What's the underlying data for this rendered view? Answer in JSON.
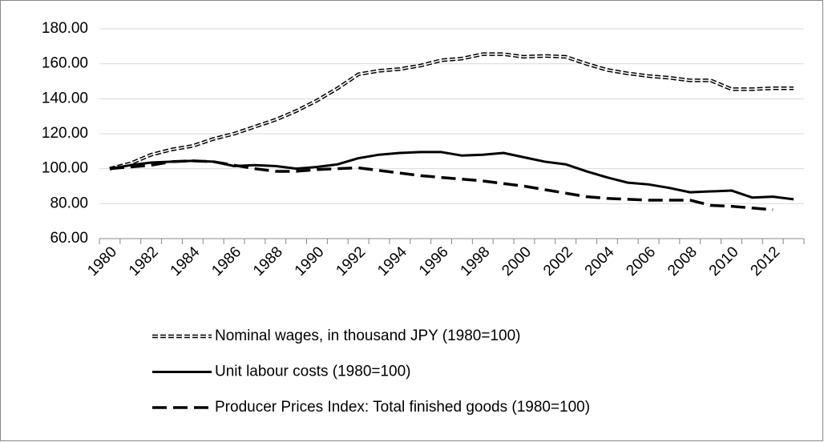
{
  "chart_data": {
    "type": "line",
    "categories": [
      "1980",
      null,
      "1982",
      null,
      "1984",
      null,
      "1986",
      null,
      "1988",
      null,
      "1990",
      null,
      "1992",
      null,
      "1994",
      null,
      "1996",
      null,
      "1998",
      null,
      "2000",
      null,
      "2002",
      null,
      "2004",
      null,
      "2006",
      null,
      "2008",
      null,
      "2010",
      null,
      "2012",
      null
    ],
    "series": [
      {
        "name": "Nominal wages, in thousand JPY (1980=100)",
        "color": "#000000",
        "dash": "double",
        "values": [
          100,
          103,
          108,
          111,
          113,
          117,
          120,
          124,
          128,
          133,
          139,
          146,
          154,
          156,
          157,
          159,
          162,
          163,
          165.5,
          165.5,
          164,
          164.5,
          164,
          160,
          156.5,
          154.5,
          153,
          152,
          150.5,
          150.5,
          145.5,
          145.5,
          146,
          146
        ]
      },
      {
        "name": "Unit labour costs (1980=100)",
        "color": "#000000",
        "dash": "solid",
        "values": [
          100,
          102,
          103.5,
          104,
          104.5,
          104,
          101.5,
          102,
          101.5,
          100,
          101,
          102.5,
          106,
          108,
          109,
          109.5,
          109.5,
          107.5,
          108,
          109,
          106.5,
          104,
          102.5,
          98.5,
          95,
          92,
          91,
          89,
          86.5,
          87,
          87.5,
          83.5,
          84,
          82.5
        ]
      },
      {
        "name": "Producer Prices Index: Total finished goods (1980=100)",
        "color": "#000000",
        "dash": "long",
        "values": [
          100,
          101,
          102,
          104,
          104.5,
          104,
          102,
          100,
          98.5,
          98.5,
          99.5,
          100,
          100.5,
          99,
          97.5,
          96,
          95,
          94,
          93,
          91.5,
          90,
          88,
          86,
          84,
          83,
          82.5,
          82,
          82,
          82,
          79,
          78.5,
          77.5,
          76.5,
          null
        ]
      }
    ],
    "ylim": [
      60,
      180
    ],
    "yticks": [
      {
        "value": 60,
        "label": "60.00"
      },
      {
        "value": 80,
        "label": "80.00"
      },
      {
        "value": 100,
        "label": "100.00"
      },
      {
        "value": 120,
        "label": "120.00"
      },
      {
        "value": 140,
        "label": "140.00"
      },
      {
        "value": 160,
        "label": "160.00"
      },
      {
        "value": 180,
        "label": "180.00"
      }
    ],
    "grid": true,
    "legend": "bottom"
  }
}
